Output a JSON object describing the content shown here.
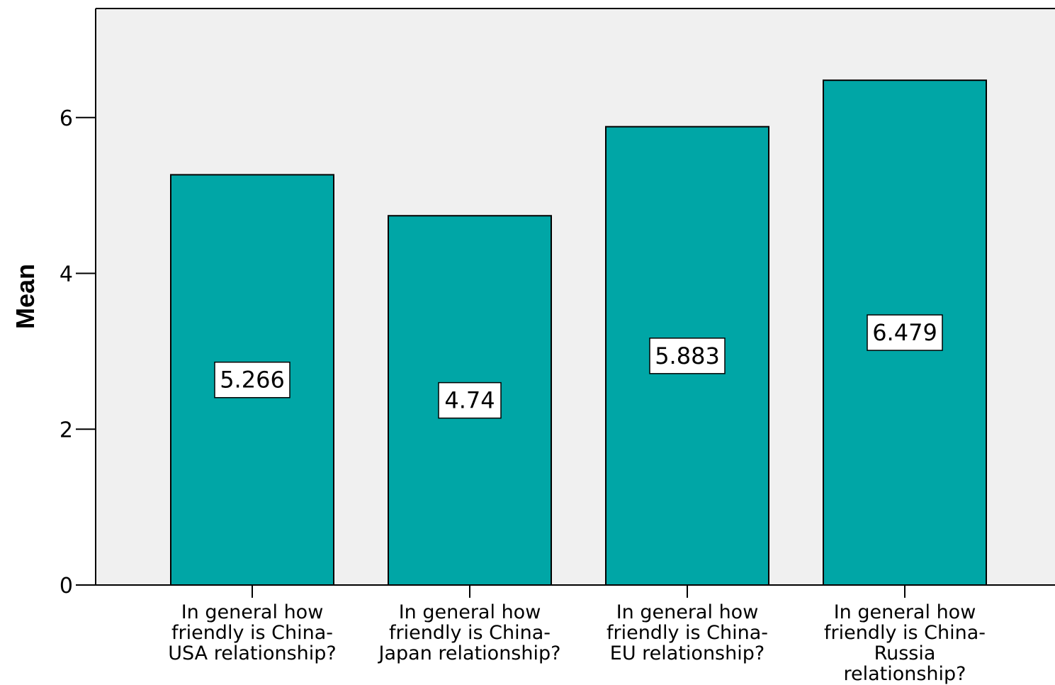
{
  "chart_data": {
    "type": "bar",
    "ylabel": "Mean",
    "xlabel": "",
    "ylim": [
      0,
      7.4
    ],
    "yticks": [
      0,
      2,
      4,
      6
    ],
    "grid": false,
    "categories": [
      "In general how friendly is China-USA relationship?",
      "In general how friendly is China-Japan relationship?",
      "In general how friendly is China-EU relationship?",
      "In general how friendly is China-Russia relationship?"
    ],
    "category_lines": [
      [
        "In general how",
        "friendly is China-",
        "USA relationship?"
      ],
      [
        "In general how",
        "friendly is China-",
        "Japan relationship?"
      ],
      [
        "In general how",
        "friendly is China-",
        "EU relationship?"
      ],
      [
        "In general how",
        "friendly is China-",
        "Russia",
        "relationship?"
      ]
    ],
    "values": [
      5.266,
      4.74,
      5.883,
      6.479
    ],
    "data_labels": [
      "5.266",
      "4.74",
      "5.883",
      "6.479"
    ],
    "colors": {
      "bar": "#00a6a6",
      "plot_background": "#f0f0f0",
      "axis": "#000000",
      "label_box": "#ffffff"
    }
  }
}
